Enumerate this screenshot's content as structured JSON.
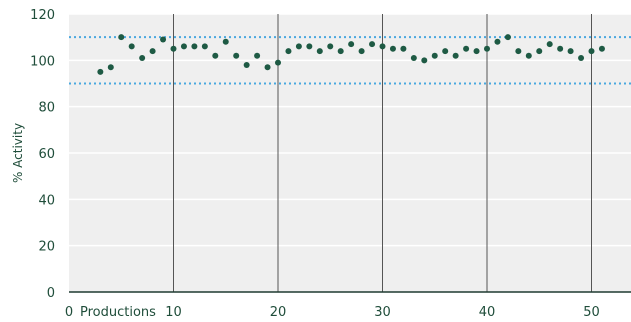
{
  "chart_data": {
    "type": "scatter",
    "xlabel": "Productions",
    "ylabel": "% Activity",
    "xlim": [
      0,
      54
    ],
    "ylim": [
      0,
      120
    ],
    "x_ticks": [
      0,
      10,
      20,
      30,
      40,
      50
    ],
    "y_ticks": [
      0,
      20,
      40,
      60,
      80,
      100,
      120
    ],
    "vertical_gridlines": [
      10,
      20,
      30,
      40,
      50
    ],
    "horizontal_gridlines": true,
    "reference_lines": [
      90,
      110
    ],
    "colors": {
      "plot_background": "#efefef",
      "point": "#1e5a44",
      "reference_line": "#4aa8df",
      "vertical_grid": "#555555",
      "horizontal_grid": "#ffffff",
      "text": "#1f4d3a"
    },
    "points": [
      {
        "x": 3,
        "y": 95
      },
      {
        "x": 4,
        "y": 97
      },
      {
        "x": 5,
        "y": 110
      },
      {
        "x": 6,
        "y": 106
      },
      {
        "x": 7,
        "y": 101
      },
      {
        "x": 8,
        "y": 104
      },
      {
        "x": 9,
        "y": 109
      },
      {
        "x": 10,
        "y": 105
      },
      {
        "x": 11,
        "y": 106
      },
      {
        "x": 12,
        "y": 106
      },
      {
        "x": 13,
        "y": 106
      },
      {
        "x": 14,
        "y": 102
      },
      {
        "x": 15,
        "y": 108
      },
      {
        "x": 16,
        "y": 102
      },
      {
        "x": 17,
        "y": 98
      },
      {
        "x": 18,
        "y": 102
      },
      {
        "x": 19,
        "y": 97
      },
      {
        "x": 20,
        "y": 99
      },
      {
        "x": 21,
        "y": 104
      },
      {
        "x": 22,
        "y": 106
      },
      {
        "x": 23,
        "y": 106
      },
      {
        "x": 24,
        "y": 104
      },
      {
        "x": 25,
        "y": 106
      },
      {
        "x": 26,
        "y": 104
      },
      {
        "x": 27,
        "y": 107
      },
      {
        "x": 28,
        "y": 104
      },
      {
        "x": 29,
        "y": 107
      },
      {
        "x": 30,
        "y": 106
      },
      {
        "x": 31,
        "y": 105
      },
      {
        "x": 32,
        "y": 105
      },
      {
        "x": 33,
        "y": 101
      },
      {
        "x": 34,
        "y": 100
      },
      {
        "x": 35,
        "y": 102
      },
      {
        "x": 36,
        "y": 104
      },
      {
        "x": 37,
        "y": 102
      },
      {
        "x": 38,
        "y": 105
      },
      {
        "x": 39,
        "y": 104
      },
      {
        "x": 40,
        "y": 105
      },
      {
        "x": 41,
        "y": 108
      },
      {
        "x": 42,
        "y": 110
      },
      {
        "x": 43,
        "y": 104
      },
      {
        "x": 44,
        "y": 102
      },
      {
        "x": 45,
        "y": 104
      },
      {
        "x": 46,
        "y": 107
      },
      {
        "x": 47,
        "y": 105
      },
      {
        "x": 48,
        "y": 104
      },
      {
        "x": 49,
        "y": 101
      },
      {
        "x": 50,
        "y": 104
      },
      {
        "x": 51,
        "y": 105
      }
    ]
  }
}
